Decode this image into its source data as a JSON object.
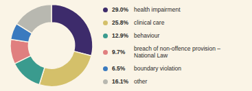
{
  "chart_data": {
    "type": "pie",
    "categories": [
      "health impairment",
      "clinical care",
      "behaviour",
      "breach of non-offence provision –\nNational Law",
      "boundary violation",
      "other"
    ],
    "values": [
      29.0,
      25.8,
      12.9,
      9.7,
      6.5,
      16.1
    ],
    "value_labels": [
      "29.0%",
      "25.8%",
      "12.9%",
      "9.7%",
      "6.5%",
      "16.1%"
    ],
    "colors": [
      "#3d2b6b",
      "#d4c06a",
      "#3a9b8e",
      "#e07f7f",
      "#3a7abf",
      "#b8b8b0"
    ],
    "data_labels": true,
    "legend": "right"
  }
}
